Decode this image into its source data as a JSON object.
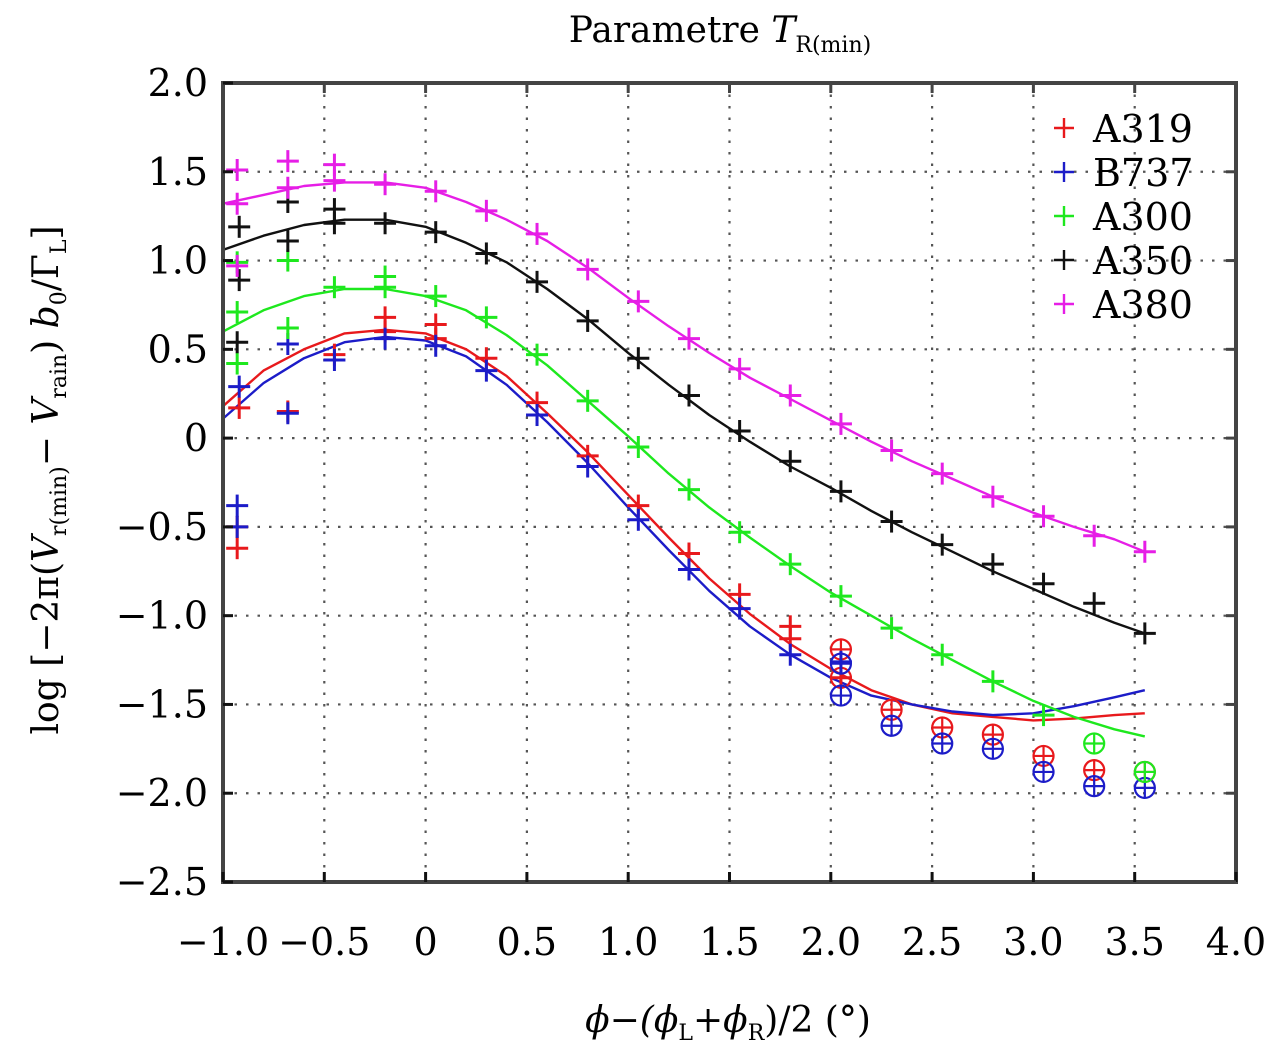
{
  "chart_data": {
    "type": "scatter",
    "title": "Parametre T_R(min)",
    "title_parts": {
      "main": "Parametre ",
      "var": "T",
      "sub": "R(min)"
    },
    "xlabel": "ϕ−(ϕ_L+ϕ_R)/2 (°)",
    "xlabel_parts": {
      "a": "ϕ−(ϕ",
      "s1": "L",
      "b": "+ϕ",
      "s2": "R",
      "c": ")/2 (°)"
    },
    "ylabel": "log [−2π(V_r(min) − V_rain) b_0/Γ_L]",
    "ylabel_parts": {
      "a": "log [−2π(",
      "v1": "V",
      "s1": "r(min)",
      "b": "− ",
      "v2": "V",
      "s2": "rain",
      "c": ") ",
      "v3": "b",
      "s3": "0",
      "d": "/Γ",
      "s4": "L",
      "e": "]"
    },
    "xlim": [
      -1.0,
      4.0
    ],
    "ylim": [
      -2.5,
      2.0
    ],
    "xticks": [
      -1.0,
      -0.5,
      0,
      0.5,
      1.0,
      1.5,
      2.0,
      2.5,
      3.0,
      3.5,
      4.0
    ],
    "xtick_labels": [
      "−1.0",
      "−0.5",
      "0",
      "0.5",
      "1.0",
      "1.5",
      "2.0",
      "2.5",
      "3.0",
      "3.5",
      "4.0"
    ],
    "yticks": [
      2.0,
      1.5,
      1.0,
      0.5,
      0,
      -0.5,
      -1.0,
      -1.5,
      -2.0,
      -2.5
    ],
    "ytick_labels": [
      "2.0",
      "1.5",
      "1.0",
      "0.5",
      "0",
      "−0.5",
      "−1.0",
      "−1.5",
      "−2.0",
      "−2.5"
    ],
    "grid": true,
    "legend_position": "top-right",
    "series": [
      {
        "name": "A319",
        "color": "#e8191c",
        "points": [
          [
            -0.93,
            -0.62
          ],
          [
            -0.93,
            -0.5
          ],
          [
            -0.92,
            0.17
          ],
          [
            -0.68,
            0.15
          ],
          [
            -0.45,
            0.47
          ],
          [
            -0.2,
            0.68
          ],
          [
            -0.2,
            0.6
          ],
          [
            0.05,
            0.64
          ],
          [
            0.05,
            0.56
          ],
          [
            0.3,
            0.45
          ],
          [
            0.55,
            0.2
          ],
          [
            0.8,
            -0.1
          ],
          [
            1.05,
            -0.38
          ],
          [
            1.3,
            -0.65
          ],
          [
            1.55,
            -0.88
          ],
          [
            1.8,
            -1.06
          ],
          [
            1.8,
            -1.13
          ],
          [
            2.05,
            -1.35
          ]
        ],
        "outliers": [
          [
            2.05,
            -1.19
          ],
          [
            2.05,
            -1.35
          ],
          [
            2.3,
            -1.53
          ],
          [
            2.55,
            -1.63
          ],
          [
            2.8,
            -1.67
          ],
          [
            3.05,
            -1.79
          ],
          [
            3.3,
            -1.87
          ],
          [
            3.55,
            -1.88
          ]
        ],
        "fit": [
          [
            -1.0,
            0.18
          ],
          [
            -0.8,
            0.38
          ],
          [
            -0.6,
            0.5
          ],
          [
            -0.4,
            0.59
          ],
          [
            -0.2,
            0.61
          ],
          [
            0.0,
            0.59
          ],
          [
            0.2,
            0.5
          ],
          [
            0.4,
            0.35
          ],
          [
            0.6,
            0.14
          ],
          [
            0.8,
            -0.08
          ],
          [
            1.0,
            -0.32
          ],
          [
            1.2,
            -0.56
          ],
          [
            1.4,
            -0.79
          ],
          [
            1.6,
            -0.99
          ],
          [
            1.8,
            -1.16
          ],
          [
            2.0,
            -1.3
          ],
          [
            2.2,
            -1.42
          ],
          [
            2.4,
            -1.5
          ],
          [
            2.6,
            -1.55
          ],
          [
            2.8,
            -1.57
          ],
          [
            3.0,
            -1.59
          ],
          [
            3.2,
            -1.58
          ],
          [
            3.4,
            -1.56
          ],
          [
            3.55,
            -1.55
          ]
        ]
      },
      {
        "name": "B737",
        "color": "#1c1cc8",
        "points": [
          [
            -0.93,
            -0.38
          ],
          [
            -0.93,
            -0.5
          ],
          [
            -0.92,
            0.29
          ],
          [
            -0.68,
            0.14
          ],
          [
            -0.68,
            0.53
          ],
          [
            -0.45,
            0.44
          ],
          [
            -0.2,
            0.56
          ],
          [
            0.05,
            0.52
          ],
          [
            0.3,
            0.38
          ],
          [
            0.55,
            0.13
          ],
          [
            0.8,
            -0.16
          ],
          [
            1.05,
            -0.46
          ],
          [
            1.3,
            -0.74
          ],
          [
            1.55,
            -0.96
          ],
          [
            1.8,
            -1.22
          ],
          [
            2.05,
            -1.26
          ]
        ],
        "outliers": [
          [
            2.05,
            -1.45
          ],
          [
            2.05,
            -1.27
          ],
          [
            2.3,
            -1.62
          ],
          [
            2.55,
            -1.72
          ],
          [
            2.8,
            -1.75
          ],
          [
            3.05,
            -1.88
          ],
          [
            3.3,
            -1.96
          ],
          [
            3.55,
            -1.97
          ]
        ],
        "fit": [
          [
            -1.0,
            0.11
          ],
          [
            -0.8,
            0.31
          ],
          [
            -0.6,
            0.45
          ],
          [
            -0.4,
            0.54
          ],
          [
            -0.2,
            0.57
          ],
          [
            0.0,
            0.55
          ],
          [
            0.2,
            0.46
          ],
          [
            0.4,
            0.3
          ],
          [
            0.6,
            0.09
          ],
          [
            0.8,
            -0.14
          ],
          [
            1.0,
            -0.39
          ],
          [
            1.2,
            -0.63
          ],
          [
            1.4,
            -0.86
          ],
          [
            1.6,
            -1.06
          ],
          [
            1.8,
            -1.22
          ],
          [
            2.0,
            -1.35
          ],
          [
            2.2,
            -1.45
          ],
          [
            2.4,
            -1.5
          ],
          [
            2.6,
            -1.54
          ],
          [
            2.8,
            -1.56
          ],
          [
            3.0,
            -1.55
          ],
          [
            3.2,
            -1.51
          ],
          [
            3.4,
            -1.46
          ],
          [
            3.55,
            -1.42
          ]
        ]
      },
      {
        "name": "A300",
        "color": "#1ee81e",
        "points": [
          [
            -0.93,
            0.42
          ],
          [
            -0.93,
            0.71
          ],
          [
            -0.93,
            0.99
          ],
          [
            -0.68,
            0.62
          ],
          [
            -0.68,
            1.0
          ],
          [
            -0.45,
            0.85
          ],
          [
            -0.2,
            0.91
          ],
          [
            -0.2,
            0.85
          ],
          [
            0.05,
            0.8
          ],
          [
            0.3,
            0.68
          ],
          [
            0.55,
            0.47
          ],
          [
            0.8,
            0.21
          ],
          [
            1.05,
            -0.05
          ],
          [
            1.3,
            -0.29
          ],
          [
            1.55,
            -0.53
          ],
          [
            1.8,
            -0.71
          ],
          [
            2.05,
            -0.89
          ],
          [
            2.3,
            -1.07
          ],
          [
            2.55,
            -1.22
          ],
          [
            2.8,
            -1.37
          ],
          [
            3.05,
            -1.56
          ]
        ],
        "outliers": [
          [
            3.3,
            -1.72
          ],
          [
            3.55,
            -1.88
          ]
        ],
        "fit": [
          [
            -1.0,
            0.6
          ],
          [
            -0.8,
            0.72
          ],
          [
            -0.6,
            0.8
          ],
          [
            -0.4,
            0.84
          ],
          [
            -0.2,
            0.84
          ],
          [
            0.0,
            0.8
          ],
          [
            0.2,
            0.72
          ],
          [
            0.4,
            0.58
          ],
          [
            0.6,
            0.41
          ],
          [
            0.8,
            0.21
          ],
          [
            1.0,
            0.01
          ],
          [
            1.2,
            -0.2
          ],
          [
            1.4,
            -0.39
          ],
          [
            1.6,
            -0.56
          ],
          [
            1.8,
            -0.72
          ],
          [
            2.0,
            -0.87
          ],
          [
            2.2,
            -1.0
          ],
          [
            2.4,
            -1.13
          ],
          [
            2.6,
            -1.25
          ],
          [
            2.8,
            -1.37
          ],
          [
            3.0,
            -1.48
          ],
          [
            3.2,
            -1.57
          ],
          [
            3.4,
            -1.64
          ],
          [
            3.55,
            -1.68
          ]
        ]
      },
      {
        "name": "A350",
        "color": "#111111",
        "points": [
          [
            -0.93,
            0.54
          ],
          [
            -0.92,
            0.89
          ],
          [
            -0.92,
            1.19
          ],
          [
            -0.68,
            1.11
          ],
          [
            -0.68,
            1.33
          ],
          [
            -0.45,
            1.29
          ],
          [
            -0.45,
            1.21
          ],
          [
            -0.2,
            1.21
          ],
          [
            0.05,
            1.16
          ],
          [
            0.3,
            1.04
          ],
          [
            0.55,
            0.88
          ],
          [
            0.8,
            0.66
          ],
          [
            1.05,
            0.45
          ],
          [
            1.3,
            0.24
          ],
          [
            1.55,
            0.04
          ],
          [
            1.8,
            -0.13
          ],
          [
            2.05,
            -0.3
          ],
          [
            2.3,
            -0.47
          ],
          [
            2.55,
            -0.6
          ],
          [
            2.8,
            -0.71
          ],
          [
            3.05,
            -0.82
          ],
          [
            3.3,
            -0.93
          ],
          [
            3.55,
            -1.1
          ]
        ],
        "outliers": [],
        "fit": [
          [
            -1.0,
            1.06
          ],
          [
            -0.8,
            1.14
          ],
          [
            -0.6,
            1.2
          ],
          [
            -0.4,
            1.23
          ],
          [
            -0.2,
            1.23
          ],
          [
            0.0,
            1.19
          ],
          [
            0.2,
            1.1
          ],
          [
            0.4,
            0.99
          ],
          [
            0.6,
            0.84
          ],
          [
            0.8,
            0.67
          ],
          [
            1.0,
            0.48
          ],
          [
            1.2,
            0.3
          ],
          [
            1.4,
            0.13
          ],
          [
            1.6,
            -0.02
          ],
          [
            1.8,
            -0.16
          ],
          [
            2.0,
            -0.28
          ],
          [
            2.2,
            -0.41
          ],
          [
            2.4,
            -0.53
          ],
          [
            2.6,
            -0.64
          ],
          [
            2.8,
            -0.75
          ],
          [
            3.0,
            -0.85
          ],
          [
            3.2,
            -0.95
          ],
          [
            3.4,
            -1.04
          ],
          [
            3.55,
            -1.1
          ]
        ]
      },
      {
        "name": "A380",
        "color": "#e61ee6",
        "points": [
          [
            -0.93,
            0.97
          ],
          [
            -0.93,
            1.32
          ],
          [
            -0.93,
            1.51
          ],
          [
            -0.68,
            1.56
          ],
          [
            -0.68,
            1.41
          ],
          [
            -0.45,
            1.54
          ],
          [
            -0.45,
            1.45
          ],
          [
            -0.2,
            1.43
          ],
          [
            0.05,
            1.39
          ],
          [
            0.3,
            1.28
          ],
          [
            0.55,
            1.15
          ],
          [
            0.8,
            0.95
          ],
          [
            1.05,
            0.77
          ],
          [
            1.3,
            0.56
          ],
          [
            1.55,
            0.39
          ],
          [
            1.8,
            0.24
          ],
          [
            2.05,
            0.08
          ],
          [
            2.3,
            -0.07
          ],
          [
            2.55,
            -0.2
          ],
          [
            2.8,
            -0.33
          ],
          [
            3.05,
            -0.44
          ],
          [
            3.3,
            -0.55
          ],
          [
            3.55,
            -0.64
          ]
        ],
        "outliers": [],
        "fit": [
          [
            -1.0,
            1.32
          ],
          [
            -0.8,
            1.37
          ],
          [
            -0.6,
            1.42
          ],
          [
            -0.4,
            1.44
          ],
          [
            -0.2,
            1.44
          ],
          [
            0.0,
            1.41
          ],
          [
            0.2,
            1.33
          ],
          [
            0.4,
            1.23
          ],
          [
            0.6,
            1.11
          ],
          [
            0.8,
            0.96
          ],
          [
            1.0,
            0.79
          ],
          [
            1.2,
            0.63
          ],
          [
            1.4,
            0.48
          ],
          [
            1.6,
            0.34
          ],
          [
            1.8,
            0.22
          ],
          [
            2.0,
            0.1
          ],
          [
            2.2,
            -0.02
          ],
          [
            2.4,
            -0.13
          ],
          [
            2.6,
            -0.23
          ],
          [
            2.8,
            -0.33
          ],
          [
            3.0,
            -0.42
          ],
          [
            3.2,
            -0.5
          ],
          [
            3.4,
            -0.57
          ],
          [
            3.55,
            -0.64
          ]
        ]
      }
    ]
  }
}
